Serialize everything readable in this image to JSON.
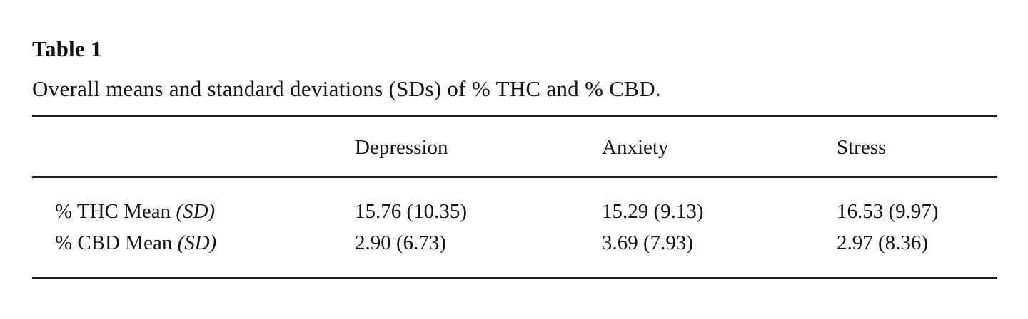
{
  "table": {
    "title": "Table 1",
    "caption": "Overall means and standard deviations (SDs) of % THC and % CBD.",
    "columns": [
      "",
      "Depression",
      "Anxiety",
      "Stress"
    ],
    "rows": [
      {
        "label_main": "% THC Mean",
        "label_sd": "(SD)",
        "values": [
          "15.76 (10.35)",
          "15.29 (9.13)",
          "16.53 (9.97)"
        ]
      },
      {
        "label_main": "% CBD Mean",
        "label_sd": "(SD)",
        "values": [
          "2.90 (6.73)",
          "3.69 (7.93)",
          "2.97 (8.36)"
        ]
      }
    ],
    "style": {
      "rule_color": "#1c1c1c",
      "text_color": "#141414",
      "background": "#ffffff"
    }
  }
}
